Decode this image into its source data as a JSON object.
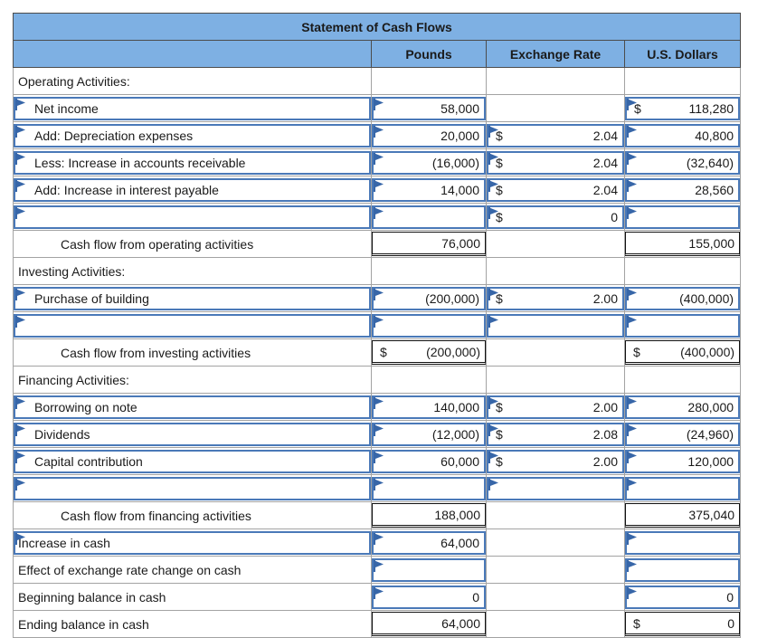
{
  "title": "Statement of Cash Flows",
  "columns": {
    "label": "",
    "pounds": "Pounds",
    "exchange_rate": "Exchange Rate",
    "us_dollars": "U.S. Dollars"
  },
  "colors": {
    "header_bg": "#7eb0e3",
    "input_border": "#4a79b8",
    "flag": "#3766a8",
    "grid_line": "#a3a3a3",
    "total_border": "#111111"
  },
  "icons": {
    "input_marker": "flag-icon"
  },
  "rows": [
    {
      "id": "operating-header",
      "cells": [
        {
          "k": "label",
          "t": "Operating Activities:",
          "ind": 0
        },
        {
          "k": "blank"
        },
        {
          "k": "blank"
        },
        {
          "k": "blank"
        }
      ]
    },
    {
      "id": "net-income",
      "cells": [
        {
          "k": "ilabel",
          "t": "Net income",
          "ind": 1
        },
        {
          "k": "input",
          "v": "58,000"
        },
        {
          "k": "blank"
        },
        {
          "k": "input",
          "cur": "$",
          "v": "118,280"
        }
      ]
    },
    {
      "id": "depreciation",
      "cells": [
        {
          "k": "ilabel",
          "t": "Add: Depreciation expenses",
          "ind": 1
        },
        {
          "k": "input",
          "v": "20,000"
        },
        {
          "k": "input",
          "cur": "$",
          "v": "2.04"
        },
        {
          "k": "input",
          "v": "40,800"
        }
      ]
    },
    {
      "id": "accounts-receivable",
      "cells": [
        {
          "k": "ilabel",
          "t": "Less: Increase in accounts receivable",
          "ind": 1
        },
        {
          "k": "input",
          "v": "(16,000)"
        },
        {
          "k": "input",
          "cur": "$",
          "v": "2.04"
        },
        {
          "k": "input",
          "v": "(32,640)"
        }
      ]
    },
    {
      "id": "interest-payable",
      "cells": [
        {
          "k": "ilabel",
          "t": "Add: Increase in interest payable",
          "ind": 1
        },
        {
          "k": "input",
          "v": "14,000"
        },
        {
          "k": "input",
          "cur": "$",
          "v": "2.04"
        },
        {
          "k": "input",
          "v": "28,560"
        }
      ]
    },
    {
      "id": "operating-blank",
      "cells": [
        {
          "k": "ilabel",
          "t": "",
          "ind": 1
        },
        {
          "k": "input",
          "v": ""
        },
        {
          "k": "input",
          "cur": "$",
          "v": "0"
        },
        {
          "k": "input",
          "v": ""
        }
      ]
    },
    {
      "id": "operating-total",
      "cells": [
        {
          "k": "label",
          "t": "Cash flow from operating activities",
          "ind": 2
        },
        {
          "k": "total",
          "v": "76,000"
        },
        {
          "k": "blank"
        },
        {
          "k": "total",
          "v": "155,000"
        }
      ]
    },
    {
      "id": "investing-header",
      "cells": [
        {
          "k": "label",
          "t": "Investing Activities:",
          "ind": 0
        },
        {
          "k": "blank"
        },
        {
          "k": "blank"
        },
        {
          "k": "blank"
        }
      ]
    },
    {
      "id": "purchase-building",
      "cells": [
        {
          "k": "ilabel",
          "t": "Purchase of building",
          "ind": 1
        },
        {
          "k": "input",
          "v": "(200,000)"
        },
        {
          "k": "input",
          "cur": "$",
          "v": "2.00"
        },
        {
          "k": "input",
          "v": "(400,000)"
        }
      ]
    },
    {
      "id": "investing-blank",
      "cells": [
        {
          "k": "ilabel",
          "t": "",
          "ind": 1
        },
        {
          "k": "input",
          "v": ""
        },
        {
          "k": "input",
          "v": ""
        },
        {
          "k": "input",
          "v": ""
        }
      ]
    },
    {
      "id": "investing-total",
      "cells": [
        {
          "k": "label",
          "t": "Cash flow from investing activities",
          "ind": 2
        },
        {
          "k": "total",
          "cur": "$",
          "v": "(200,000)"
        },
        {
          "k": "blank"
        },
        {
          "k": "total",
          "cur": "$",
          "v": "(400,000)"
        }
      ]
    },
    {
      "id": "financing-header",
      "cells": [
        {
          "k": "label",
          "t": "Financing Activities:",
          "ind": 0
        },
        {
          "k": "blank"
        },
        {
          "k": "blank"
        },
        {
          "k": "blank"
        }
      ]
    },
    {
      "id": "borrowing-note",
      "cells": [
        {
          "k": "ilabel",
          "t": "Borrowing on note",
          "ind": 1
        },
        {
          "k": "input",
          "v": "140,000"
        },
        {
          "k": "input",
          "cur": "$",
          "v": "2.00"
        },
        {
          "k": "input",
          "v": "280,000"
        }
      ]
    },
    {
      "id": "dividends",
      "cells": [
        {
          "k": "ilabel",
          "t": "Dividends",
          "ind": 1
        },
        {
          "k": "input",
          "v": "(12,000)"
        },
        {
          "k": "input",
          "cur": "$",
          "v": "2.08"
        },
        {
          "k": "input",
          "v": "(24,960)"
        }
      ]
    },
    {
      "id": "capital-contribution",
      "cells": [
        {
          "k": "ilabel",
          "t": "Capital contribution",
          "ind": 1
        },
        {
          "k": "input",
          "v": "60,000"
        },
        {
          "k": "input",
          "cur": "$",
          "v": "2.00"
        },
        {
          "k": "input",
          "v": "120,000"
        }
      ]
    },
    {
      "id": "financing-blank",
      "cells": [
        {
          "k": "ilabel",
          "t": "",
          "ind": 1
        },
        {
          "k": "input",
          "v": ""
        },
        {
          "k": "input",
          "v": ""
        },
        {
          "k": "input",
          "v": ""
        }
      ]
    },
    {
      "id": "financing-total",
      "cells": [
        {
          "k": "label",
          "t": "Cash flow from financing activities",
          "ind": 2
        },
        {
          "k": "total",
          "v": "188,000"
        },
        {
          "k": "blank"
        },
        {
          "k": "total",
          "v": "375,040"
        }
      ]
    },
    {
      "id": "increase-in-cash",
      "cells": [
        {
          "k": "ilabel",
          "t": "Increase in cash",
          "ind": 0
        },
        {
          "k": "input",
          "v": "64,000"
        },
        {
          "k": "blank"
        },
        {
          "k": "input",
          "v": ""
        }
      ]
    },
    {
      "id": "effect-exchange-rate",
      "cells": [
        {
          "k": "label",
          "t": "Effect of exchange rate change on cash",
          "ind": 0
        },
        {
          "k": "input",
          "v": ""
        },
        {
          "k": "blank"
        },
        {
          "k": "input",
          "v": ""
        }
      ]
    },
    {
      "id": "beginning-balance",
      "cells": [
        {
          "k": "label",
          "t": "Beginning balance in cash",
          "ind": 0
        },
        {
          "k": "input",
          "v": "0"
        },
        {
          "k": "blank"
        },
        {
          "k": "input",
          "v": "0"
        }
      ]
    },
    {
      "id": "ending-balance",
      "cells": [
        {
          "k": "label",
          "t": "Ending balance in cash",
          "ind": 0
        },
        {
          "k": "total",
          "v": "64,000"
        },
        {
          "k": "blank"
        },
        {
          "k": "total",
          "cur": "$",
          "v": "0"
        }
      ]
    }
  ]
}
